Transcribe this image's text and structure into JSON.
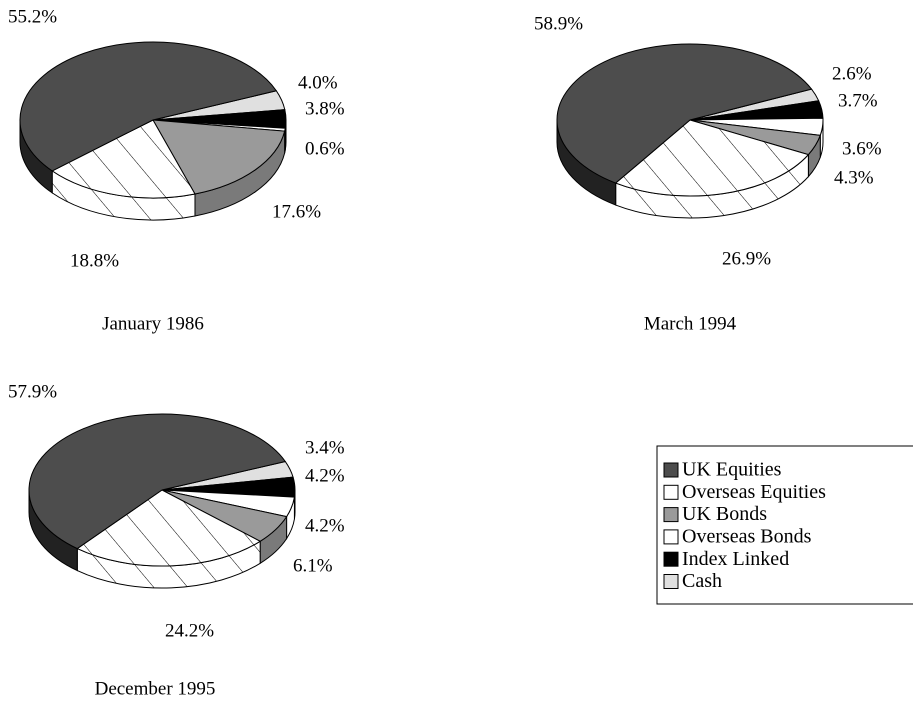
{
  "legend": {
    "labels": [
      "UK Equities",
      "Overseas Equities",
      "UK Bonds",
      "Overseas Bonds",
      "Index Linked",
      "Cash"
    ],
    "colors": [
      "#4d4d4d",
      "hatch",
      "#9a9a9a",
      "#ffffff",
      "#000000",
      "#e0e0e0"
    ]
  },
  "chart_data": [
    {
      "type": "pie",
      "title": "January 1986",
      "values": [
        55.2,
        18.8,
        17.6,
        0.6,
        3.8,
        4.0
      ],
      "value_labels": [
        "55.2%",
        "18.8%",
        "17.6%",
        "0.6%",
        "3.8%",
        "4.0%"
      ]
    },
    {
      "type": "pie",
      "title": "March 1994",
      "values": [
        58.9,
        26.9,
        4.3,
        3.6,
        3.7,
        2.6
      ],
      "value_labels": [
        "58.9%",
        "26.9%",
        "4.3%",
        "3.6%",
        "3.7%",
        "2.6%"
      ]
    },
    {
      "type": "pie",
      "title": "December 1995",
      "values": [
        57.9,
        24.2,
        6.1,
        4.2,
        4.2,
        3.4
      ],
      "value_labels": [
        "57.9%",
        "24.2%",
        "6.1%",
        "4.2%",
        "4.2%",
        "3.4%"
      ]
    }
  ]
}
